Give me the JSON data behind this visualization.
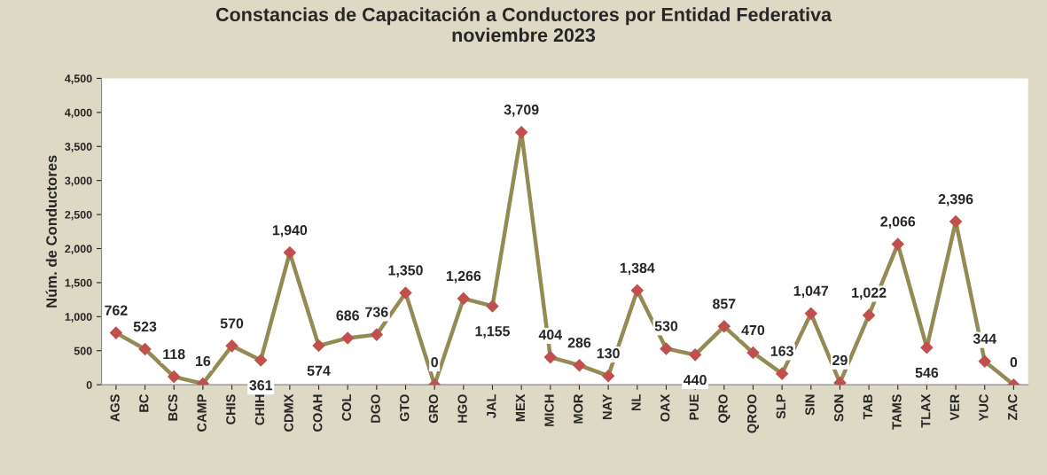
{
  "chart_data": {
    "type": "line",
    "title": "Constancias de Capacitación a Conductores por Entidad Federativa\nnoviembre 2023",
    "ylabel": "Núm. de Conductores",
    "categories": [
      "AGS",
      "BC",
      "BCS",
      "CAMP",
      "CHIS",
      "CHIH",
      "CDMX",
      "COAH",
      "COL",
      "DGO",
      "GTO",
      "GRO",
      "HGO",
      "JAL",
      "MEX",
      "MICH",
      "MOR",
      "NAY",
      "NL",
      "OAX",
      "PUE",
      "QRO",
      "QROO",
      "SLP",
      "SIN",
      "SON",
      "TAB",
      "TAMS",
      "TLAX",
      "VER",
      "YUC",
      "ZAC"
    ],
    "series": [
      {
        "color": "#948a54",
        "colors": [
          "#c0504d",
          "#c0504d",
          "#c0504d",
          "#c0504d",
          "#c0504d",
          "#c0504d",
          "#c0504d",
          "#c0504d",
          "#c0504d",
          "#c0504d",
          "#c0504d",
          "#c0504d",
          "#c0504d",
          "#c0504d",
          "#c0504d",
          "#c0504d",
          "#c0504d",
          "#c0504d",
          "#c0504d",
          "#c0504d",
          "#c0504d",
          "#c0504d",
          "#c0504d",
          "#c0504d",
          "#c0504d",
          "#c0504d",
          "#c0504d",
          "#c0504d",
          "#c0504d",
          "#c0504d",
          "#c0504d",
          "#c0504d"
        ],
        "values": [
          762,
          523,
          118,
          16,
          570,
          361,
          1940,
          574,
          686,
          736,
          1350,
          0,
          1266,
          1155,
          3709,
          404,
          286,
          130,
          1384,
          530,
          440,
          857,
          470,
          163,
          1047,
          29,
          1022,
          2066,
          546,
          2396,
          344,
          0
        ]
      }
    ],
    "value_labels": [
      "762",
      "523",
      "118",
      "16",
      "570",
      "361",
      "1,940",
      "574",
      "686",
      "736",
      "1,350",
      "0",
      "1,266",
      "1,155",
      "3,709",
      "404",
      "286",
      "130",
      "1,384",
      "530",
      "440",
      "857",
      "470",
      "163",
      "1,047",
      "29",
      "1,022",
      "2,066",
      "546",
      "2,396",
      "344",
      "0"
    ],
    "ylim": [
      0,
      4500
    ],
    "yticks": [
      {
        "value": 0,
        "label": "0"
      },
      {
        "value": 500,
        "label": "500"
      },
      {
        "value": 1000,
        "label": "1,000"
      },
      {
        "value": 1500,
        "label": "1,500"
      },
      {
        "value": 2000,
        "label": "2,000"
      },
      {
        "value": 2500,
        "label": "2,500"
      },
      {
        "value": 3000,
        "label": "3,000"
      },
      {
        "value": 3500,
        "label": "3,500"
      },
      {
        "value": 4000,
        "label": "4,000"
      },
      {
        "value": 4500,
        "label": "4,500"
      }
    ],
    "marker": "diamond",
    "line_style": "solid",
    "grid": false,
    "legend": false
  }
}
